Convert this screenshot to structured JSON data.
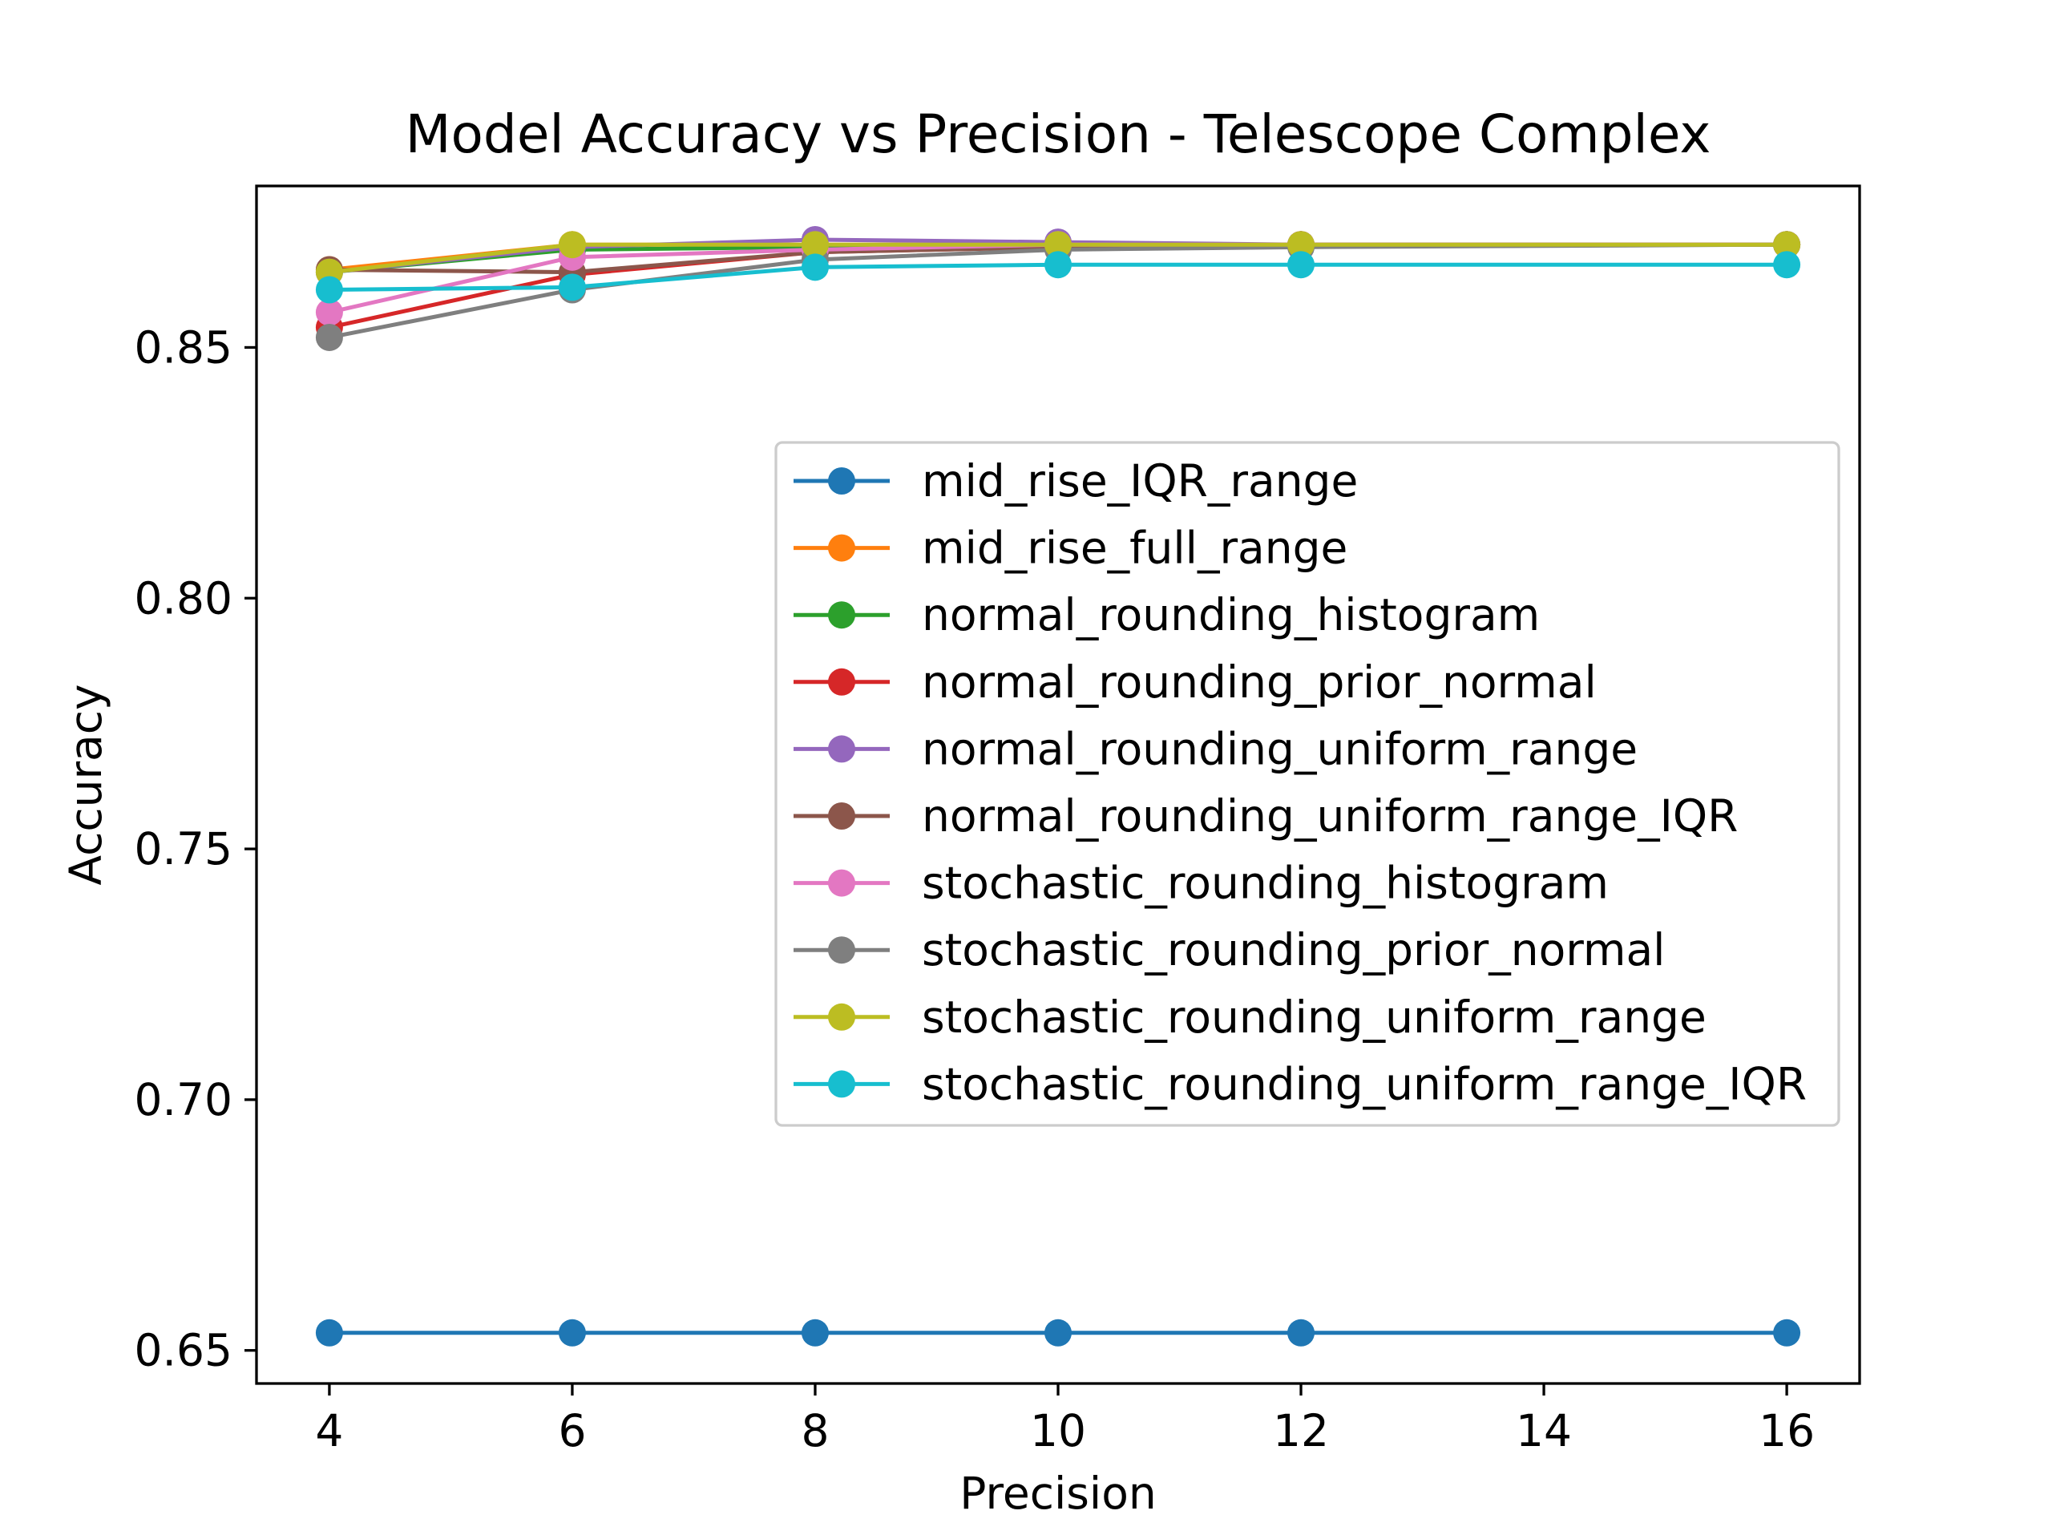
{
  "chart_data": {
    "type": "line",
    "title": "Model Accuracy vs Precision - Telescope Complex",
    "xlabel": "Precision",
    "ylabel": "Accuracy",
    "x": [
      4,
      6,
      8,
      10,
      12,
      16
    ],
    "xticks": [
      4,
      6,
      8,
      10,
      12,
      14,
      16
    ],
    "xtick_labels": [
      "4",
      "6",
      "8",
      "10",
      "12",
      "14",
      "16"
    ],
    "yticks": [
      0.65,
      0.7,
      0.75,
      0.8,
      0.85
    ],
    "ytick_labels": [
      "0.65",
      "0.70",
      "0.75",
      "0.80",
      "0.85"
    ],
    "xlim": [
      3.4,
      16.6
    ],
    "ylim": [
      0.6434,
      0.8822
    ],
    "grid": false,
    "legend_position": "center-right",
    "series": [
      {
        "name": "mid_rise_IQR_range",
        "color": "#1f77b4",
        "values": [
          0.6535,
          0.6535,
          0.6535,
          0.6535,
          0.6535,
          0.6535
        ]
      },
      {
        "name": "mid_rise_full_range",
        "color": "#ff7f0e",
        "values": [
          0.8655,
          0.8705,
          0.8705,
          0.8705,
          0.8705,
          0.8705
        ]
      },
      {
        "name": "normal_rounding_histogram",
        "color": "#2ca02c",
        "values": [
          0.865,
          0.8695,
          0.87,
          0.8705,
          0.8705,
          0.8705
        ]
      },
      {
        "name": "normal_rounding_prior_normal",
        "color": "#d62728",
        "values": [
          0.854,
          0.8645,
          0.869,
          0.87,
          0.8705,
          0.8705
        ]
      },
      {
        "name": "normal_rounding_uniform_range",
        "color": "#9467bd",
        "values": [
          0.865,
          0.87,
          0.8715,
          0.871,
          0.8705,
          0.8705
        ]
      },
      {
        "name": "normal_rounding_uniform_range_IQR",
        "color": "#8c564b",
        "values": [
          0.8655,
          0.865,
          0.869,
          0.87,
          0.8705,
          0.8705
        ]
      },
      {
        "name": "stochastic_rounding_histogram",
        "color": "#e377c2",
        "values": [
          0.857,
          0.868,
          0.8695,
          0.8705,
          0.8705,
          0.8705
        ]
      },
      {
        "name": "stochastic_rounding_prior_normal",
        "color": "#7f7f7f",
        "values": [
          0.852,
          0.8615,
          0.8675,
          0.8695,
          0.87,
          0.8705
        ]
      },
      {
        "name": "stochastic_rounding_uniform_range",
        "color": "#bcbd22",
        "values": [
          0.865,
          0.8705,
          0.8705,
          0.8705,
          0.8705,
          0.8705
        ]
      },
      {
        "name": "stochastic_rounding_uniform_range_IQR",
        "color": "#17becf",
        "values": [
          0.8615,
          0.862,
          0.866,
          0.8665,
          0.8665,
          0.8665
        ]
      }
    ]
  }
}
